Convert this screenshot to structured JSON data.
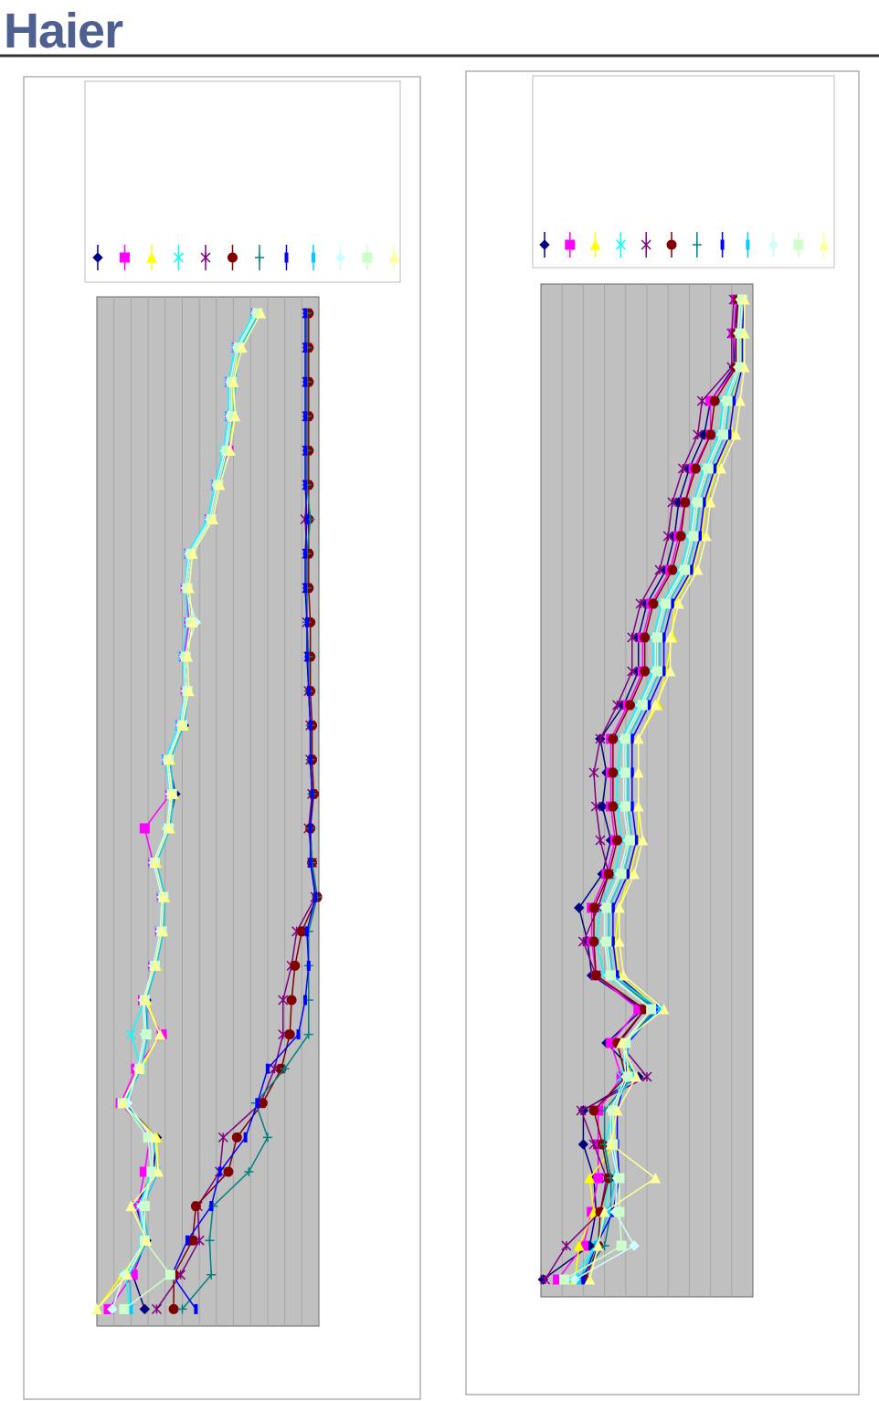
{
  "header": {
    "logo": "Haier"
  },
  "chart_data": [
    {
      "type": "line",
      "orientation": "horizontal",
      "grid": true,
      "xlim": [
        0,
        13
      ],
      "xticks": [
        1,
        2,
        3,
        4,
        5,
        6,
        7,
        8,
        9,
        10,
        11,
        12
      ],
      "series": [
        {
          "color": "#000080",
          "marker": "diamond",
          "values": [
            9.4,
            8.3,
            7.9,
            7.9,
            7.6,
            7.1,
            6.7,
            5.5,
            5.3,
            5.6,
            5.2,
            5.3,
            5.1,
            4.2,
            4.6,
            4.2,
            3.4,
            3.9,
            3.8,
            3.4,
            2.9,
            2.9,
            2.5,
            1.6,
            3.5,
            3.3,
            2.3,
            2.9,
            2.1,
            2.8
          ]
        },
        {
          "color": "#ff00ff",
          "marker": "square",
          "values": [
            9.3,
            8.2,
            7.8,
            7.8,
            7.7,
            7.0,
            6.6,
            5.4,
            5.2,
            5.4,
            5.1,
            5.2,
            4.9,
            4.1,
            4.3,
            2.8,
            3.3,
            3.8,
            3.7,
            3.3,
            2.7,
            3.8,
            2.3,
            1.4,
            3.1,
            2.8,
            2.4,
            2.8,
            2.1,
            0.7
          ]
        },
        {
          "color": "#ffff00",
          "marker": "triangle",
          "values": [
            9.5,
            8.4,
            8.0,
            8.0,
            7.8,
            7.2,
            6.8,
            5.6,
            5.4,
            5.6,
            5.3,
            5.4,
            5.1,
            4.3,
            4.5,
            4.3,
            3.5,
            4.0,
            3.9,
            3.5,
            2.9,
            3.7,
            2.6,
            1.5,
            3.5,
            3.6,
            2.0,
            2.9,
            1.5,
            0.0
          ]
        },
        {
          "color": "#00ffff",
          "marker": "x",
          "values": [
            9.2,
            8.1,
            7.7,
            7.7,
            7.4,
            6.9,
            6.5,
            5.3,
            5.2,
            5.3,
            5.0,
            5.2,
            4.8,
            4.0,
            4.3,
            4.1,
            3.3,
            3.8,
            3.7,
            3.3,
            2.8,
            2.0,
            2.6,
            1.6,
            3.0,
            3.2,
            2.5,
            2.7,
            1.7,
            1.9
          ]
        },
        {
          "color": "#800080",
          "marker": "star",
          "values": [
            12.3,
            12.3,
            12.3,
            12.3,
            12.3,
            12.3,
            12.2,
            12.3,
            12.3,
            12.3,
            12.4,
            12.4,
            12.5,
            12.5,
            12.6,
            12.4,
            12.6,
            12.8,
            11.7,
            11.4,
            10.9,
            10.9,
            10.4,
            9.6,
            7.4,
            7.2,
            5.9,
            6.0,
            4.9,
            3.5
          ]
        },
        {
          "color": "#800000",
          "marker": "circle",
          "values": [
            12.4,
            12.4,
            12.4,
            12.4,
            12.4,
            12.4,
            12.4,
            12.4,
            12.4,
            12.5,
            12.5,
            12.5,
            12.6,
            12.6,
            12.7,
            12.5,
            12.6,
            12.9,
            12.0,
            11.6,
            11.4,
            11.3,
            10.8,
            9.7,
            8.2,
            7.7,
            5.8,
            5.6,
            4.5,
            4.5
          ]
        },
        {
          "color": "#008080",
          "marker": "plus",
          "values": [
            12.3,
            12.3,
            12.3,
            12.3,
            12.3,
            12.3,
            12.5,
            12.3,
            12.3,
            12.3,
            12.4,
            12.4,
            12.5,
            12.5,
            12.6,
            12.5,
            12.6,
            12.9,
            12.4,
            12.4,
            12.4,
            12.4,
            11.0,
            9.3,
            10.0,
            8.9,
            6.8,
            6.6,
            6.7,
            5.0
          ]
        },
        {
          "color": "#0000ff",
          "marker": "bar",
          "values": [
            12.2,
            12.2,
            12.2,
            12.2,
            12.2,
            12.2,
            12.3,
            12.2,
            12.2,
            12.3,
            12.3,
            12.4,
            12.5,
            12.5,
            12.6,
            12.5,
            12.5,
            12.8,
            12.3,
            12.4,
            12.2,
            11.8,
            10.0,
            9.4,
            8.7,
            7.2,
            6.7,
            5.3,
            4.4,
            5.8
          ]
        },
        {
          "color": "#00ccff",
          "marker": "bar",
          "values": [
            9.5,
            8.4,
            8.1,
            8.0,
            7.6,
            7.2,
            6.8,
            5.6,
            5.4,
            5.6,
            5.3,
            5.4,
            5.1,
            4.3,
            4.5,
            4.3,
            3.5,
            4.0,
            3.9,
            3.5,
            2.9,
            3.0,
            2.6,
            1.6,
            3.3,
            3.6,
            2.7,
            3.0,
            1.9,
            2.0
          ]
        },
        {
          "color": "#ccffff",
          "marker": "diamond",
          "values": [
            9.3,
            8.2,
            7.8,
            7.8,
            7.5,
            7.0,
            6.6,
            5.4,
            5.2,
            5.8,
            5.1,
            5.2,
            4.9,
            4.1,
            4.3,
            4.1,
            3.3,
            3.8,
            3.7,
            3.3,
            2.7,
            2.8,
            2.4,
            1.8,
            3.2,
            3.3,
            2.6,
            2.8,
            1.6,
            0.9
          ]
        },
        {
          "color": "#ccffcc",
          "marker": "square",
          "values": [
            9.4,
            8.3,
            7.9,
            7.9,
            7.6,
            7.1,
            6.7,
            5.5,
            5.3,
            5.5,
            5.2,
            5.3,
            5.0,
            4.2,
            4.4,
            4.2,
            3.4,
            3.9,
            3.8,
            3.4,
            2.8,
            2.9,
            2.5,
            1.5,
            3.0,
            3.2,
            2.8,
            2.8,
            4.3,
            1.6
          ]
        },
        {
          "color": "#ffff99",
          "marker": "triangle",
          "values": [
            9.6,
            8.5,
            8.0,
            8.1,
            7.8,
            7.2,
            6.8,
            5.6,
            5.4,
            5.6,
            5.3,
            5.4,
            5.0,
            4.2,
            4.4,
            4.2,
            3.4,
            3.9,
            3.8,
            3.4,
            2.8,
            3.7,
            2.5,
            1.5,
            3.4,
            3.6,
            2.0,
            2.9,
            1.8,
            0.0
          ]
        }
      ]
    },
    {
      "type": "line",
      "orientation": "horizontal",
      "grid": true,
      "xlim": [
        0,
        10
      ],
      "xticks": [
        1,
        2,
        3,
        4,
        5,
        6,
        7,
        8,
        9
      ],
      "series": [
        {
          "color": "#000080",
          "marker": "diamond",
          "values": [
            9.3,
            9.1,
            9.1,
            8.0,
            7.7,
            7.0,
            6.5,
            6.3,
            5.9,
            5.0,
            4.6,
            4.6,
            3.9,
            2.8,
            3.1,
            2.9,
            3.3,
            2.9,
            1.8,
            2.2,
            2.4,
            4.8,
            3.1,
            4.6,
            2.0,
            2.0,
            2.5,
            2.6,
            2.3,
            0.1
          ]
        },
        {
          "color": "#ff00ff",
          "marker": "square",
          "values": [
            9.2,
            9.1,
            9.2,
            8.0,
            8.0,
            7.2,
            6.8,
            6.5,
            6.1,
            5.2,
            4.8,
            4.8,
            4.1,
            3.3,
            3.3,
            3.3,
            3.5,
            3.1,
            2.4,
            2.4,
            2.6,
            4.6,
            3.3,
            3.8,
            2.7,
            2.7,
            2.7,
            2.4,
            2.0,
            0.8
          ]
        },
        {
          "color": "#ffff00",
          "marker": "triangle",
          "values": [
            9.5,
            9.4,
            9.5,
            9.0,
            9.0,
            8.3,
            7.8,
            7.6,
            7.2,
            6.3,
            6.2,
            5.9,
            5.5,
            4.6,
            4.6,
            4.6,
            4.6,
            4.2,
            3.7,
            3.5,
            3.7,
            5.6,
            3.9,
            4.2,
            3.4,
            3.5,
            2.3,
            2.5,
            1.8,
            1.6
          ]
        },
        {
          "color": "#00ffff",
          "marker": "x",
          "values": [
            9.4,
            9.3,
            9.3,
            8.6,
            8.4,
            7.7,
            7.2,
            7.0,
            6.6,
            5.7,
            5.3,
            5.3,
            4.6,
            3.8,
            3.6,
            3.6,
            3.8,
            3.5,
            2.8,
            2.6,
            3.0,
            5.6,
            4.0,
            3.8,
            3.4,
            3.0,
            3.2,
            3.0,
            2.6,
            1.5
          ]
        },
        {
          "color": "#800080",
          "marker": "star",
          "values": [
            9.1,
            9.0,
            9.0,
            7.6,
            7.4,
            6.7,
            6.2,
            6.0,
            5.6,
            4.7,
            4.3,
            4.3,
            3.6,
            2.8,
            2.5,
            2.6,
            2.8,
            3.2,
            2.7,
            2.0,
            2.6,
            4.9,
            3.7,
            5.0,
            1.9,
            2.5,
            3.1,
            2.8,
            1.2,
            0.2
          ]
        },
        {
          "color": "#800000",
          "marker": "circle",
          "values": [
            9.3,
            9.2,
            9.2,
            8.2,
            8.0,
            7.3,
            6.8,
            6.6,
            6.2,
            5.3,
            4.9,
            4.9,
            4.2,
            3.4,
            3.4,
            3.4,
            3.6,
            3.2,
            2.5,
            2.5,
            2.6,
            4.9,
            3.6,
            4.0,
            2.5,
            2.9,
            3.2,
            2.8,
            2.7,
            2.1
          ]
        },
        {
          "color": "#008080",
          "marker": "plus",
          "values": [
            9.5,
            9.4,
            9.4,
            8.8,
            8.6,
            7.9,
            7.4,
            7.2,
            6.8,
            5.9,
            5.5,
            5.5,
            4.8,
            4.0,
            4.0,
            4.0,
            4.2,
            3.8,
            3.1,
            3.1,
            3.3,
            5.4,
            4.0,
            4.3,
            3.0,
            3.0,
            3.3,
            3.3,
            3.0,
            1.8
          ]
        },
        {
          "color": "#0000ff",
          "marker": "bar",
          "values": [
            9.6,
            9.5,
            9.5,
            9.1,
            8.9,
            8.2,
            7.7,
            7.5,
            7.1,
            6.2,
            5.8,
            5.8,
            5.1,
            4.3,
            4.3,
            4.3,
            4.5,
            4.1,
            3.4,
            3.4,
            3.6,
            5.5,
            4.1,
            4.0,
            3.6,
            3.6,
            3.7,
            3.4,
            2.6,
            2.0
          ]
        },
        {
          "color": "#00ccff",
          "marker": "bar",
          "values": [
            9.5,
            9.4,
            9.4,
            8.9,
            8.7,
            8.0,
            7.5,
            7.3,
            6.9,
            6.0,
            5.6,
            5.6,
            4.9,
            4.1,
            4.1,
            4.1,
            4.3,
            3.9,
            3.2,
            3.2,
            3.4,
            5.6,
            4.0,
            4.3,
            3.3,
            3.4,
            3.5,
            3.2,
            2.6,
            1.8
          ]
        },
        {
          "color": "#ccffff",
          "marker": "diamond",
          "values": [
            9.4,
            9.3,
            9.3,
            8.7,
            8.5,
            7.8,
            7.3,
            7.1,
            6.7,
            5.8,
            5.4,
            5.4,
            4.7,
            3.9,
            3.9,
            3.9,
            4.1,
            3.7,
            3.0,
            3.0,
            3.2,
            5.2,
            3.9,
            4.0,
            3.3,
            3.3,
            3.6,
            3.5,
            4.4,
            1.6
          ]
        },
        {
          "color": "#ccffcc",
          "marker": "square",
          "values": [
            9.5,
            9.4,
            9.4,
            8.8,
            8.6,
            7.9,
            7.4,
            7.2,
            6.8,
            5.9,
            5.5,
            5.5,
            4.8,
            4.0,
            4.0,
            4.0,
            4.2,
            3.8,
            3.1,
            3.1,
            3.3,
            5.2,
            4.0,
            4.1,
            3.4,
            3.4,
            3.7,
            3.7,
            3.8,
            1.1
          ]
        },
        {
          "color": "#ffff99",
          "marker": "triangle",
          "values": [
            9.6,
            9.6,
            9.6,
            9.4,
            9.2,
            8.5,
            8.0,
            7.8,
            7.4,
            6.5,
            6.1,
            6.1,
            5.4,
            4.6,
            4.6,
            4.6,
            4.8,
            4.4,
            3.7,
            3.7,
            3.9,
            5.8,
            3.8,
            4.5,
            3.6,
            3.3,
            5.4,
            3.0,
            2.7,
            2.3
          ]
        }
      ]
    }
  ]
}
